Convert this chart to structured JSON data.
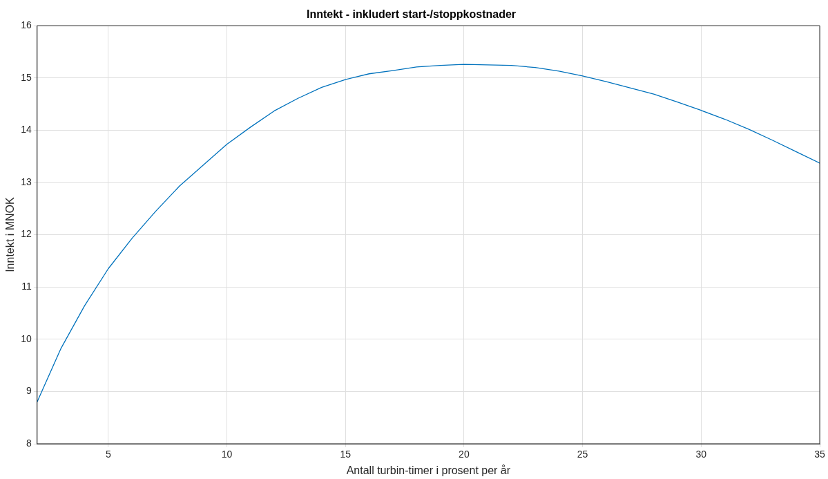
{
  "chart_data": {
    "type": "line",
    "title": "Inntekt - inkludert start-/stoppkostnader",
    "xlabel": "Antall turbin-timer i prosent per år",
    "ylabel": "Inntekt i MNOK",
    "x": [
      2,
      3,
      4,
      5,
      6,
      7,
      8,
      9,
      10,
      11,
      12,
      13,
      14,
      15,
      16,
      17,
      18,
      19,
      20,
      21,
      22,
      23,
      24,
      25,
      26,
      27,
      28,
      29,
      30,
      31,
      32,
      33,
      34,
      35
    ],
    "series": [
      {
        "color": "#0072bd",
        "values": [
          8.8,
          9.82,
          10.64,
          11.35,
          11.93,
          12.45,
          12.93,
          13.33,
          13.73,
          14.06,
          14.37,
          14.61,
          14.82,
          14.97,
          15.08,
          15.14,
          15.21,
          15.24,
          15.26,
          15.25,
          15.24,
          15.2,
          15.13,
          15.04,
          14.93,
          14.81,
          14.69,
          14.54,
          14.38,
          14.21,
          14.02,
          13.81,
          13.59,
          13.37
        ]
      }
    ],
    "xlim": [
      2,
      35
    ],
    "xticks": [
      5,
      10,
      15,
      20,
      25,
      30,
      35
    ],
    "ylim": [
      8,
      16
    ],
    "yticks": [
      8,
      9,
      10,
      11,
      12,
      13,
      14,
      15,
      16
    ],
    "grid": true,
    "legend": false,
    "marker": "none",
    "line_style": "solid"
  }
}
